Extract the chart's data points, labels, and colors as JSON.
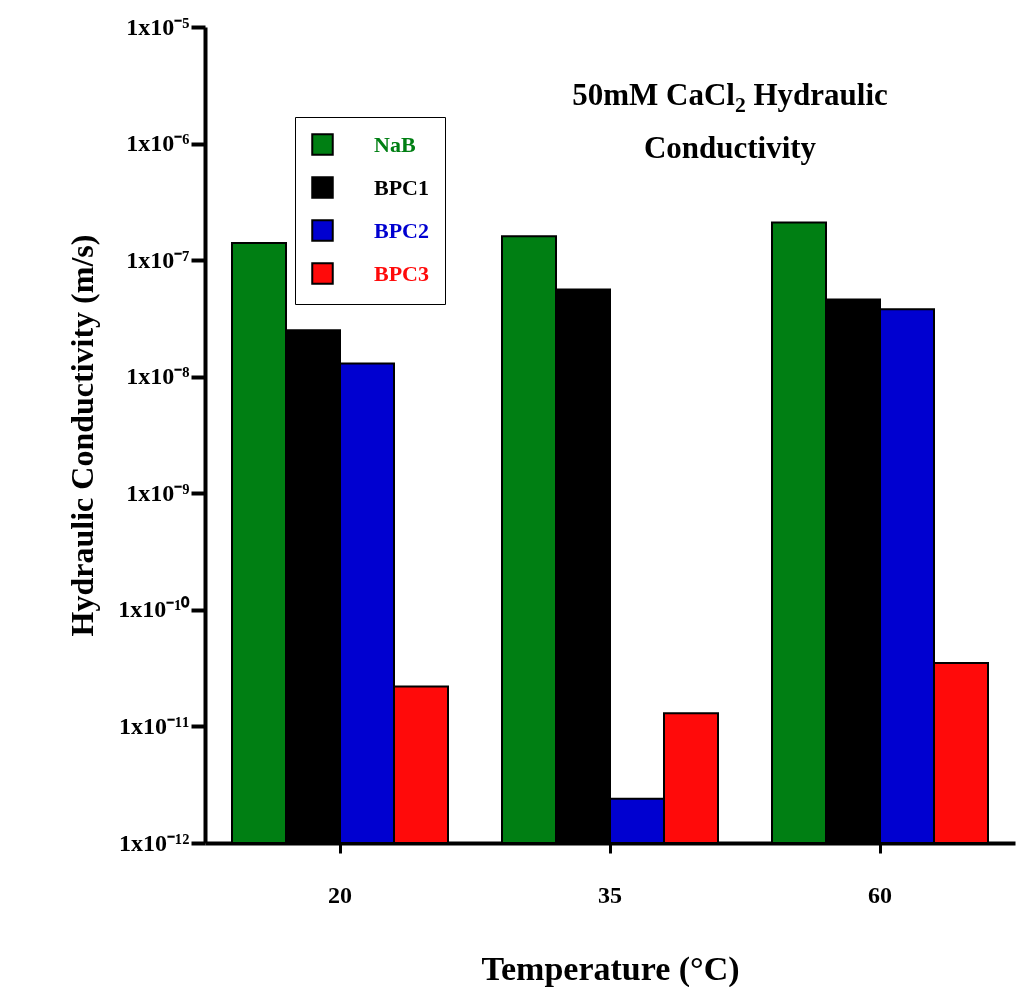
{
  "chart_data": {
    "type": "bar",
    "title": "50mM CaCl$_{2}$ Hydraulic Conductivity",
    "xlabel": "Temperature (°C)",
    "ylabel": "Hydraulic Conductivity (m/s)",
    "categories": [
      "20",
      "35",
      "60"
    ],
    "series": [
      {
        "name": "NaB",
        "color": "#007f13",
        "values": [
          1.4e-07,
          1.6e-07,
          2.1e-07
        ]
      },
      {
        "name": "BPC1",
        "color": "#000000",
        "values": [
          2.5e-08,
          5.6e-08,
          4.6e-08
        ]
      },
      {
        "name": "BPC2",
        "color": "#0000d0",
        "values": [
          1.3e-08,
          2.4e-12,
          3.8e-08
        ]
      },
      {
        "name": "BPC3",
        "color": "#ff0a0a",
        "values": [
          2.2e-11,
          1.3e-11,
          3.5e-11
        ]
      }
    ],
    "log": true,
    "ylim": [
      1e-12,
      1e-05
    ],
    "yticks": [
      {
        "value": 1e-12,
        "label": "1x10⁻¹²"
      },
      {
        "value": 1e-11,
        "label": "1x10⁻¹¹"
      },
      {
        "value": 1e-10,
        "label": "1x10⁻¹⁰"
      },
      {
        "value": 1e-09,
        "label": "1x10⁻⁹"
      },
      {
        "value": 1e-08,
        "label": "1x10⁻⁸"
      },
      {
        "value": 1e-07,
        "label": "1x10⁻⁷"
      },
      {
        "value": 1e-06,
        "label": "1x10⁻⁶"
      },
      {
        "value": 1e-05,
        "label": "1x10⁻⁵"
      }
    ],
    "legend": "top left",
    "grid": false
  }
}
